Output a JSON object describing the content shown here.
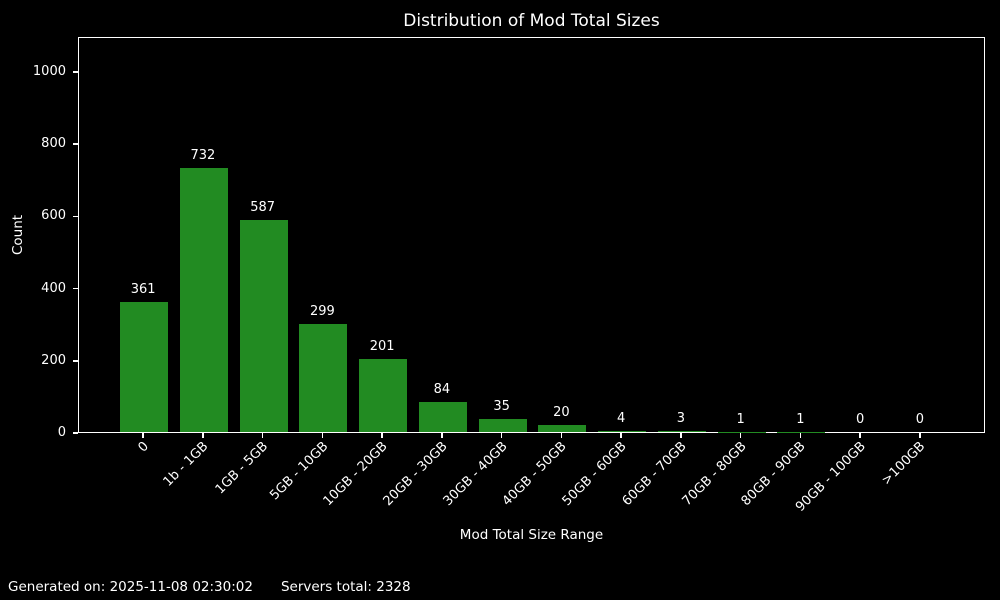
{
  "page": {
    "background": "#000000",
    "text_color": "#ffffff"
  },
  "chart_data": {
    "type": "bar",
    "title": "Distribution of Mod Total Sizes",
    "xlabel": "Mod Total Size Range",
    "ylabel": "Count",
    "categories": [
      "0",
      "1b - 1GB",
      "1GB - 5GB",
      "5GB - 10GB",
      "10GB - 20GB",
      "20GB - 30GB",
      "30GB - 40GB",
      "40GB - 50GB",
      "50GB - 60GB",
      "60GB - 70GB",
      "70GB - 80GB",
      "80GB - 90GB",
      "90GB - 100GB",
      ">100GB"
    ],
    "values": [
      361,
      732,
      587,
      299,
      201,
      84,
      35,
      20,
      4,
      3,
      1,
      1,
      0,
      0
    ],
    "yticks": [
      0,
      200,
      400,
      600,
      800,
      1000
    ],
    "ylim": [
      0,
      1097
    ],
    "bar_color": "#228B22",
    "grid": false,
    "legend": "none",
    "value_labels_shown": true,
    "xtick_rotation_deg": 45
  },
  "footer": {
    "generated_on": "Generated on: 2025-11-08 02:30:02",
    "servers_total": "Servers total: 2328"
  }
}
